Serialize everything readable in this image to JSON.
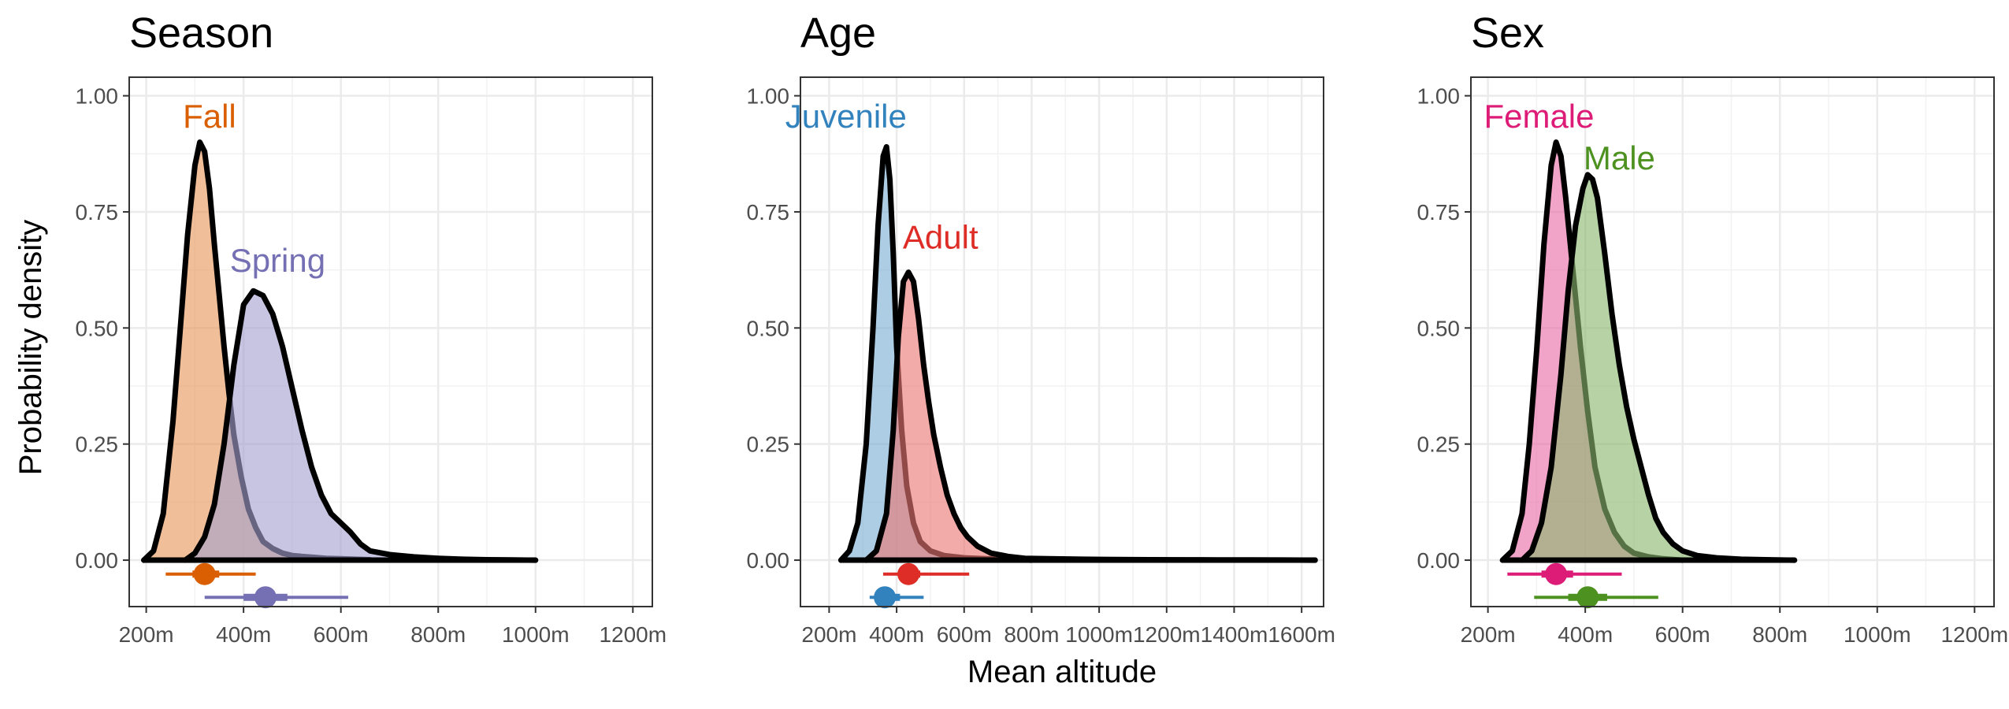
{
  "figure": {
    "ylabel": "Probability density",
    "xlabel": "Mean altitude"
  },
  "chart_data": [
    {
      "type": "area",
      "title": "Season",
      "xlim": [
        165,
        1240
      ],
      "ylim": [
        -0.1,
        1.04
      ],
      "xticks": [
        200,
        400,
        600,
        800,
        1000,
        1200
      ],
      "xtick_labels": [
        "200m",
        "400m",
        "600m",
        "800m",
        "1000m",
        "1200m"
      ],
      "yticks": [
        0,
        0.25,
        0.5,
        0.75,
        1
      ],
      "ytick_labels": [
        "0.00",
        "0.25",
        "0.50",
        "0.75",
        "1.00"
      ],
      "grid": true,
      "series": [
        {
          "name": "Fall",
          "color": "#d95f02",
          "label_pos": [
            330,
            0.95
          ],
          "x": [
            195,
            215,
            235,
            255,
            270,
            285,
            300,
            310,
            320,
            330,
            340,
            350,
            360,
            370,
            380,
            395,
            410,
            425,
            440,
            460,
            480,
            500,
            520,
            545,
            570,
            600,
            630,
            660
          ],
          "y": [
            0.0,
            0.02,
            0.1,
            0.3,
            0.5,
            0.7,
            0.85,
            0.9,
            0.88,
            0.8,
            0.68,
            0.57,
            0.46,
            0.36,
            0.27,
            0.18,
            0.11,
            0.07,
            0.04,
            0.025,
            0.015,
            0.01,
            0.008,
            0.006,
            0.004,
            0.003,
            0.002,
            0.001
          ],
          "interval": {
            "y": -0.03,
            "low": 240,
            "high": 425,
            "inner_low": 295,
            "inner_high": 350,
            "point": 320
          }
        },
        {
          "name": "Spring",
          "color": "#7570b3",
          "label_pos": [
            470,
            0.64
          ],
          "x": [
            280,
            300,
            320,
            340,
            360,
            380,
            400,
            420,
            440,
            460,
            480,
            500,
            520,
            540,
            560,
            580,
            600,
            620,
            640,
            660,
            700,
            750,
            800,
            850,
            900,
            950,
            1000
          ],
          "y": [
            0.0,
            0.015,
            0.05,
            0.12,
            0.25,
            0.42,
            0.55,
            0.58,
            0.57,
            0.53,
            0.46,
            0.37,
            0.28,
            0.2,
            0.14,
            0.1,
            0.08,
            0.06,
            0.035,
            0.02,
            0.012,
            0.007,
            0.004,
            0.002,
            0.001,
            0.0005,
            0.0
          ],
          "interval": {
            "y": -0.08,
            "low": 320,
            "high": 615,
            "inner_low": 400,
            "inner_high": 490,
            "point": 445
          }
        }
      ]
    },
    {
      "type": "area",
      "title": "Age",
      "xlim": [
        115,
        1665
      ],
      "ylim": [
        -0.1,
        1.04
      ],
      "xticks": [
        200,
        400,
        600,
        800,
        1000,
        1200,
        1400,
        1600
      ],
      "xtick_labels": [
        "200m",
        "400m",
        "600m",
        "800m",
        "1000m",
        "1200m",
        "1400m",
        "1600m"
      ],
      "yticks": [
        0,
        0.25,
        0.5,
        0.75,
        1
      ],
      "ytick_labels": [
        "0.00",
        "0.25",
        "0.50",
        "0.75",
        "1.00"
      ],
      "grid": true,
      "series": [
        {
          "name": "Juvenile",
          "color": "#3182bd",
          "label_pos": [
            250,
            0.95
          ],
          "x": [
            235,
            260,
            285,
            310,
            330,
            345,
            360,
            370,
            380,
            390,
            400,
            415,
            430,
            450,
            470,
            500,
            540,
            600,
            700,
            800
          ],
          "y": [
            0.0,
            0.02,
            0.08,
            0.25,
            0.5,
            0.72,
            0.87,
            0.89,
            0.82,
            0.66,
            0.46,
            0.28,
            0.16,
            0.08,
            0.04,
            0.02,
            0.01,
            0.005,
            0.002,
            0.0
          ],
          "interval": {
            "y": -0.08,
            "low": 320,
            "high": 480,
            "inner_low": 350,
            "inner_high": 410,
            "point": 365
          }
        },
        {
          "name": "Adult",
          "color": "#de2d26",
          "label_pos": [
            530,
            0.69
          ],
          "x": [
            310,
            340,
            370,
            390,
            405,
            420,
            435,
            450,
            465,
            480,
            495,
            510,
            530,
            550,
            570,
            590,
            610,
            640,
            680,
            730,
            780,
            850,
            950,
            1050,
            1150,
            1250,
            1350,
            1450,
            1550,
            1640
          ],
          "y": [
            0.0,
            0.02,
            0.1,
            0.28,
            0.48,
            0.6,
            0.62,
            0.6,
            0.52,
            0.42,
            0.34,
            0.27,
            0.2,
            0.14,
            0.1,
            0.07,
            0.05,
            0.03,
            0.015,
            0.008,
            0.004,
            0.003,
            0.002,
            0.0015,
            0.001,
            0.0008,
            0.0006,
            0.0004,
            0.0002,
            0.0
          ],
          "interval": {
            "y": -0.03,
            "low": 360,
            "high": 615,
            "inner_low": 405,
            "inner_high": 470,
            "point": 435
          }
        }
      ]
    },
    {
      "type": "area",
      "title": "Sex",
      "xlim": [
        165,
        1240
      ],
      "ylim": [
        -0.1,
        1.04
      ],
      "xticks": [
        200,
        400,
        600,
        800,
        1000,
        1200
      ],
      "xtick_labels": [
        "200m",
        "400m",
        "600m",
        "800m",
        "1000m",
        "1200m"
      ],
      "yticks": [
        0,
        0.25,
        0.5,
        0.75,
        1
      ],
      "ytick_labels": [
        "0.00",
        "0.25",
        "0.50",
        "0.75",
        "1.00"
      ],
      "grid": true,
      "series": [
        {
          "name": "Female",
          "color": "#dd1c77",
          "label_pos": [
            305,
            0.95
          ],
          "x": [
            230,
            250,
            270,
            285,
            300,
            315,
            330,
            340,
            350,
            360,
            375,
            390,
            405,
            420,
            440,
            460,
            480,
            500,
            530,
            560,
            600
          ],
          "y": [
            0.0,
            0.02,
            0.1,
            0.25,
            0.45,
            0.68,
            0.85,
            0.9,
            0.87,
            0.78,
            0.62,
            0.46,
            0.32,
            0.2,
            0.11,
            0.06,
            0.03,
            0.015,
            0.007,
            0.003,
            0.0
          ],
          "interval": {
            "y": -0.03,
            "low": 240,
            "high": 475,
            "inner_low": 310,
            "inner_high": 375,
            "point": 340
          }
        },
        {
          "name": "Male",
          "color": "#4d9221",
          "label_pos": [
            470,
            0.86
          ],
          "x": [
            270,
            290,
            310,
            330,
            350,
            365,
            380,
            395,
            405,
            415,
            425,
            440,
            455,
            470,
            485,
            500,
            515,
            530,
            545,
            560,
            580,
            600,
            630,
            670,
            720,
            770,
            830
          ],
          "y": [
            0.0,
            0.02,
            0.08,
            0.2,
            0.4,
            0.58,
            0.72,
            0.8,
            0.83,
            0.82,
            0.78,
            0.66,
            0.53,
            0.42,
            0.33,
            0.26,
            0.2,
            0.14,
            0.09,
            0.06,
            0.035,
            0.02,
            0.01,
            0.005,
            0.002,
            0.001,
            0.0
          ],
          "interval": {
            "y": -0.08,
            "low": 295,
            "high": 550,
            "inner_low": 365,
            "inner_high": 445,
            "point": 405
          }
        }
      ]
    }
  ]
}
